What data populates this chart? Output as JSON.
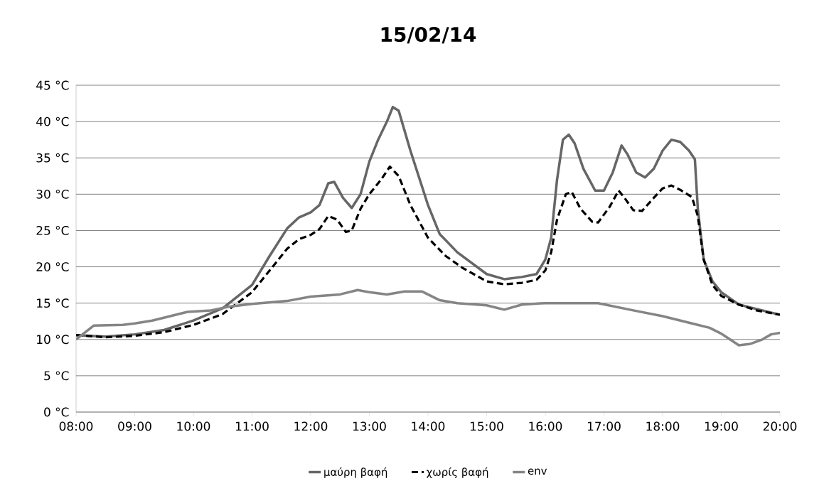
{
  "chart_data": {
    "type": "line",
    "title": "15/02/14",
    "xlim": [
      8,
      20
    ],
    "ylim": [
      0,
      45
    ],
    "xticks": [
      {
        "value": 8,
        "label": "08:00"
      },
      {
        "value": 9,
        "label": "09:00"
      },
      {
        "value": 10,
        "label": "10:00"
      },
      {
        "value": 11,
        "label": "11:00"
      },
      {
        "value": 12,
        "label": "12:00"
      },
      {
        "value": 13,
        "label": "13:00"
      },
      {
        "value": 14,
        "label": "14:00"
      },
      {
        "value": 15,
        "label": "15:00"
      },
      {
        "value": 16,
        "label": "16:00"
      },
      {
        "value": 17,
        "label": "17:00"
      },
      {
        "value": 18,
        "label": "18:00"
      },
      {
        "value": 19,
        "label": "19:00"
      },
      {
        "value": 20,
        "label": "20:00"
      }
    ],
    "yticks": [
      {
        "value": 0,
        "label": "0 °C"
      },
      {
        "value": 5,
        "label": "5 °C"
      },
      {
        "value": 10,
        "label": "10 °C"
      },
      {
        "value": 15,
        "label": "15 °C"
      },
      {
        "value": 20,
        "label": "20 °C"
      },
      {
        "value": 25,
        "label": "25 °C"
      },
      {
        "value": 30,
        "label": "30 °C"
      },
      {
        "value": 35,
        "label": "35 °C"
      },
      {
        "value": 40,
        "label": "40 °C"
      },
      {
        "value": 45,
        "label": "45 °C"
      }
    ],
    "grid": "y",
    "legend": "bottom",
    "series": [
      {
        "name": "μαύρη βαφή",
        "color": "#666666",
        "line_style": "solid",
        "x": [
          8.0,
          8.5,
          9.0,
          9.5,
          10.0,
          10.5,
          11.0,
          11.3,
          11.6,
          11.8,
          12.0,
          12.15,
          12.3,
          12.4,
          12.55,
          12.7,
          12.85,
          13.0,
          13.15,
          13.3,
          13.4,
          13.5,
          13.7,
          14.0,
          14.2,
          14.5,
          15.0,
          15.3,
          15.6,
          15.85,
          16.0,
          16.1,
          16.2,
          16.3,
          16.4,
          16.5,
          16.65,
          16.85,
          17.0,
          17.15,
          17.3,
          17.4,
          17.55,
          17.7,
          17.85,
          18.0,
          18.15,
          18.3,
          18.45,
          18.55,
          18.6,
          18.7,
          18.85,
          19.0,
          19.3,
          19.6,
          20.0
        ],
        "values": [
          10.6,
          10.4,
          10.7,
          11.3,
          12.6,
          14.3,
          17.5,
          21.5,
          25.3,
          26.8,
          27.5,
          28.5,
          31.5,
          31.7,
          29.5,
          28.1,
          30,
          34.5,
          37.5,
          40,
          42,
          41.5,
          36,
          28.5,
          24.5,
          22,
          19,
          18.3,
          18.6,
          19,
          21,
          24,
          32,
          37.5,
          38.2,
          37,
          33.5,
          30.5,
          30.5,
          33,
          36.7,
          35.5,
          33,
          32.3,
          33.5,
          36,
          37.5,
          37.2,
          36,
          34.8,
          28,
          21,
          18,
          16.5,
          14.8,
          14.2,
          13.4
        ]
      },
      {
        "name": "χωρίς βαφή",
        "color": "#000000",
        "line_style": "dashed",
        "x": [
          8.0,
          8.5,
          9.0,
          9.5,
          10.0,
          10.5,
          11.0,
          11.3,
          11.6,
          11.8,
          12.0,
          12.15,
          12.3,
          12.45,
          12.6,
          12.7,
          12.85,
          13.0,
          13.2,
          13.35,
          13.5,
          13.7,
          14.0,
          14.3,
          14.6,
          15.0,
          15.3,
          15.6,
          15.85,
          16.0,
          16.1,
          16.2,
          16.35,
          16.45,
          16.6,
          16.8,
          16.9,
          17.1,
          17.25,
          17.35,
          17.5,
          17.65,
          17.85,
          18.0,
          18.15,
          18.3,
          18.5,
          18.6,
          18.7,
          18.85,
          19.0,
          19.3,
          19.6,
          20.0
        ],
        "values": [
          10.6,
          10.3,
          10.5,
          11,
          12,
          13.5,
          16.5,
          19.5,
          22.5,
          23.8,
          24.4,
          25.2,
          27,
          26.5,
          24.8,
          25,
          28,
          30,
          32,
          33.8,
          32.5,
          28.5,
          24,
          21.5,
          19.8,
          18,
          17.6,
          17.8,
          18.2,
          19.5,
          22,
          26.5,
          30,
          30.3,
          28,
          26.2,
          26.1,
          28.3,
          30.5,
          29.5,
          27.8,
          27.7,
          29.5,
          30.8,
          31.2,
          30.6,
          29.6,
          27,
          21,
          17.5,
          16,
          14.8,
          14,
          13.4
        ]
      },
      {
        "name": "env",
        "color": "#858585",
        "line_style": "solid",
        "x": [
          8.0,
          8.3,
          8.8,
          9.0,
          9.3,
          9.6,
          9.9,
          10.3,
          10.6,
          11.0,
          11.6,
          12.0,
          12.5,
          12.8,
          13.0,
          13.3,
          13.6,
          13.9,
          14.2,
          14.5,
          15.0,
          15.3,
          15.6,
          16.0,
          16.9,
          17.5,
          18.0,
          18.5,
          18.8,
          19.0,
          19.3,
          19.5,
          19.7,
          19.85,
          20.0
        ],
        "values": [
          10.0,
          11.9,
          12.0,
          12.2,
          12.6,
          13.2,
          13.8,
          14.0,
          14.5,
          14.9,
          15.3,
          15.9,
          16.2,
          16.8,
          16.5,
          16.2,
          16.6,
          16.6,
          15.4,
          15.0,
          14.7,
          14.1,
          14.8,
          15.0,
          15.0,
          14.0,
          13.2,
          12.2,
          11.6,
          10.8,
          9.2,
          9.4,
          10.0,
          10.7,
          10.9
        ]
      }
    ]
  }
}
